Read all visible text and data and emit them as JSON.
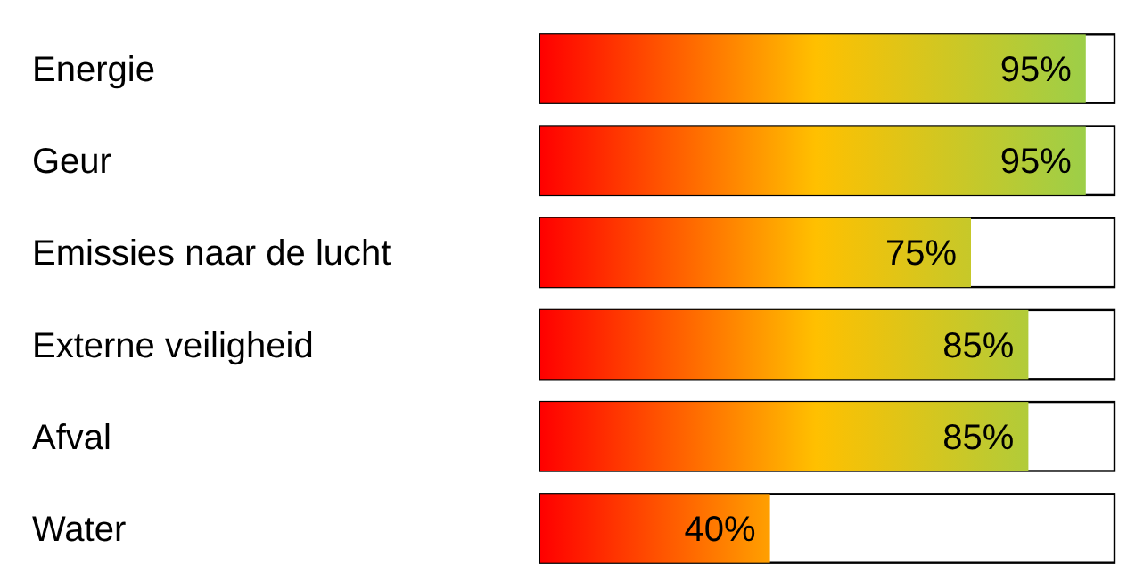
{
  "chart_data": {
    "type": "bar",
    "orientation": "horizontal",
    "categories": [
      "Energie",
      "Geur",
      "Emissies naar de lucht",
      "Externe veiligheid",
      "Afval",
      "Water"
    ],
    "values": [
      95,
      95,
      75,
      85,
      85,
      40
    ],
    "value_labels": [
      "95%",
      "95%",
      "75%",
      "85%",
      "85%",
      "40%"
    ],
    "xlim": [
      0,
      100
    ],
    "tick_labels": "y"
  }
}
